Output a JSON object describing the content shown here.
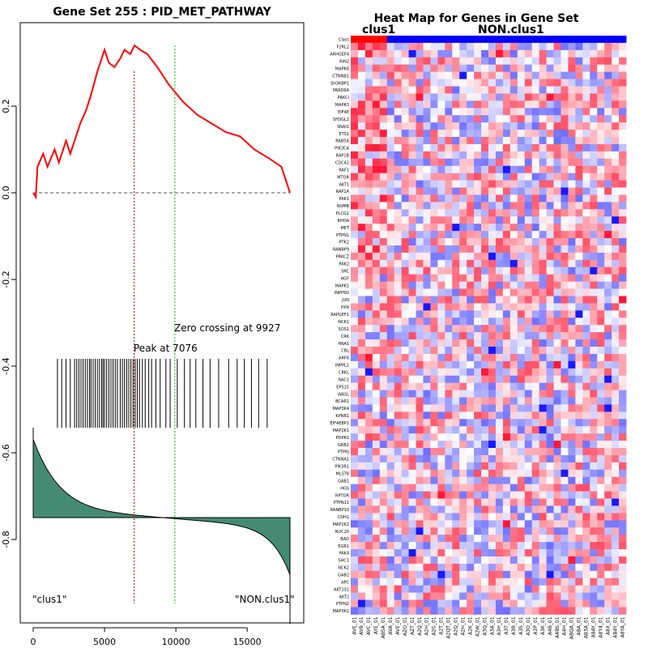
{
  "gsea": {
    "title": "Gene Set  255 : PID_MET_PATHWAY",
    "peak_label": "Peak at 7076",
    "zero_label": "Zero crossing at 9927",
    "left_class_label": "\"clus1\"",
    "right_class_label": "\"NON.clus1\"",
    "colors": {
      "es_line": "#ff0000",
      "peak_line": "#cc0000",
      "zero_line": "#00cc00",
      "ranked_fill": "#458b74"
    }
  },
  "heatmap": {
    "title": "Heat Map for Genes in Gene Set",
    "class_label_1": "clus1",
    "class_label_2": "NON.clus1",
    "class_row_label": "Class",
    "genes": [
      "F2RL2",
      "ARHGEF4",
      "RIN2",
      "MAPK8",
      "CTNNB1",
      "SH3KBP1",
      "PARD6A",
      "PRKCI",
      "MAPK3",
      "EIF4E",
      "SH3GL2",
      "SNAI1",
      "ETS1",
      "RAB5A",
      "PIK3CA",
      "RAP1B",
      "CDC42",
      "RAF1",
      "MTOR",
      "AKT1",
      "RAP1A",
      "PAK1",
      "NUMB",
      "PLCG1",
      "RHOA",
      "MET",
      "PTPN1",
      "PTK2",
      "RANBP9",
      "PRKCZ",
      "PAK2",
      "SRC",
      "HGF",
      "MAPK1",
      "INPP5D",
      "JUN",
      "PXN",
      "RAPGEF1",
      "NCK1",
      "SOS1",
      "CRK",
      "HRAS",
      "CBL",
      "ARF6",
      "INPPL1",
      "CRKL",
      "RAC1",
      "EPS15",
      "WASL",
      "BCAR1",
      "MAP3K4",
      "KPNB1",
      "EIF4EBP1",
      "MAP2K1",
      "PDPK1",
      "GRB2",
      "PTPRJ",
      "CTNNA1",
      "PIK3R1",
      "MLST8",
      "GAB1",
      "HGS",
      "RPTOR",
      "PTPN11",
      "RANBP10",
      "CDH1",
      "MAP2K2",
      "NUC20",
      "BAD",
      "EGR1",
      "PAK4",
      "SHC1",
      "NCK2",
      "GAB2",
      "APC",
      "AKT1S1",
      "AKT2",
      "PTPN2",
      "MAP3K1"
    ],
    "samples": [
      "AVE_01",
      "AVB_01",
      "AVC_01",
      "AYE_01",
      "ABSA_01",
      "AVA_01",
      "AVE_01",
      "AZO_01",
      "AZT_01",
      "A2Q_01",
      "A2H_01",
      "A2G_01",
      "A2T_01",
      "A2QT_01",
      "A2Q_01",
      "A2H_01",
      "A2K_01",
      "A2W_01",
      "A3Q_01",
      "A3A_01",
      "A3H_01",
      "A3T_01",
      "A3B_01",
      "A3S_01",
      "A3O_01",
      "A3P_01",
      "A3K_01",
      "A4B_01",
      "A4BS_01",
      "A4H_01",
      "ABQA_01",
      "ABA_01",
      "AB3A_01",
      "A8AY_01",
      "A8Y4_01",
      "A8X_01",
      "AB4Y_01",
      "A8YA_01"
    ],
    "colors": {
      "class_1": "#ff0000",
      "class_2": "#0000ff",
      "high": "#ff0000",
      "low": "#0000ff"
    }
  },
  "chart_data": [
    {
      "type": "line",
      "title": "Gene Set  255 : PID_MET_PATHWAY",
      "xlim": [
        0,
        18000
      ],
      "ylim": [
        -0.95,
        0.37
      ],
      "x_ticks": [
        0,
        5000,
        10000,
        15000
      ],
      "y_ticks": [
        -0.8,
        -0.6,
        -0.4,
        -0.2,
        0.0,
        0.2
      ],
      "peak_at": 7076,
      "zero_crossing_at": 9927,
      "running_es": {
        "x": [
          0,
          180,
          300,
          700,
          1000,
          1500,
          1800,
          2300,
          2600,
          3000,
          3300,
          3700,
          4000,
          4500,
          5000,
          5300,
          5700,
          6100,
          6400,
          6800,
          7100,
          7500,
          8000,
          8700,
          9500,
          10500,
          11500,
          12500,
          13500,
          14500,
          15500,
          16500,
          17400,
          18000
        ],
        "y": [
          0,
          -0.01,
          0.06,
          0.09,
          0.06,
          0.1,
          0.07,
          0.12,
          0.09,
          0.13,
          0.16,
          0.19,
          0.22,
          0.28,
          0.33,
          0.3,
          0.29,
          0.31,
          0.33,
          0.32,
          0.34,
          0.33,
          0.32,
          0.29,
          0.25,
          0.21,
          0.18,
          0.16,
          0.14,
          0.13,
          0.1,
          0.08,
          0.06,
          0
        ]
      },
      "hits": [
        1700,
        2000,
        2300,
        2600,
        2900,
        3050,
        3200,
        3350,
        3500,
        3650,
        3800,
        3950,
        4050,
        4200,
        4350,
        4500,
        4650,
        4800,
        4900,
        5000,
        5150,
        5300,
        5450,
        5600,
        5750,
        5900,
        6100,
        6250,
        6400,
        6550,
        6700,
        6850,
        7000,
        7150,
        7300,
        7450,
        7650,
        7850,
        8100,
        8300,
        8600,
        8900,
        9300,
        9600,
        10100,
        10600,
        11000,
        11400,
        11900,
        12400,
        13000,
        13700,
        14300,
        14800,
        15300,
        15800,
        16400
      ]
    },
    {
      "type": "heatmap",
      "title": "Heat Map for Genes in Gene Set",
      "rows": 79,
      "columns": 38,
      "groups": [
        {
          "name": "clus1",
          "columns": 5
        },
        {
          "name": "NON.clus1",
          "columns": 33
        }
      ]
    }
  ]
}
